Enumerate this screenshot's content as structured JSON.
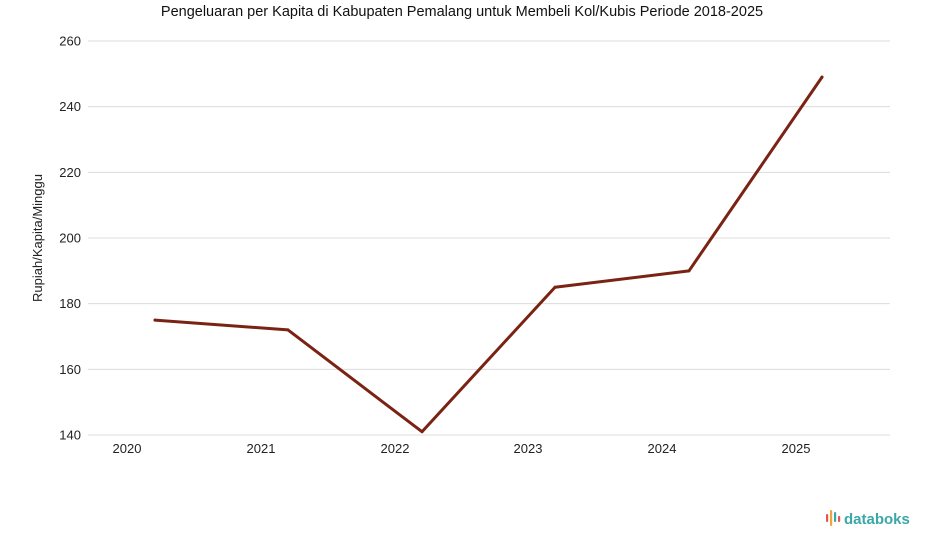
{
  "chart_data": {
    "type": "line",
    "title": "Pengeluaran per Kapita di Kabupaten Pemalang untuk Membeli Kol/Kubis Periode 2018-2025",
    "xlabel": "",
    "ylabel": "Rupiah/Kapita/Minggu",
    "x_ticks": [
      "2020",
      "2021",
      "2022",
      "2023",
      "2024",
      "2025"
    ],
    "y_ticks": [
      "140",
      "160",
      "180",
      "200",
      "220",
      "240",
      "260"
    ],
    "ylim": [
      140,
      260
    ],
    "grid": true,
    "legend": "none",
    "line_color": "#7a2314",
    "series": [
      {
        "x": [
          "2020",
          "2021",
          "2022",
          "2023",
          "2024",
          "2025"
        ],
        "values": [
          175,
          172,
          141,
          185,
          190,
          249
        ]
      }
    ]
  },
  "branding": {
    "name": "databoks",
    "icon": "databoks-logo-icon",
    "colors": [
      "#e8554e",
      "#f2a33a",
      "#3aa7a9"
    ]
  }
}
